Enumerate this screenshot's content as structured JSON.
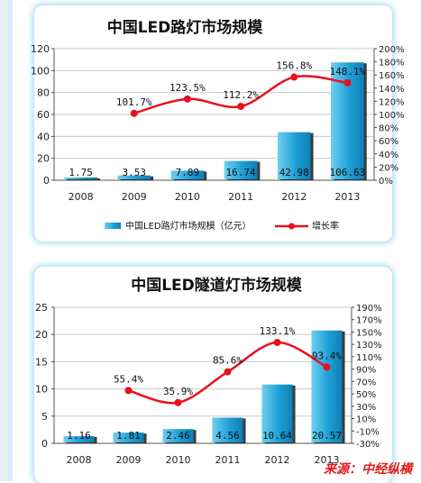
{
  "chart_data": [
    {
      "type": "bar",
      "title": "中国LED路灯市场规模",
      "categories": [
        "2008",
        "2009",
        "2010",
        "2011",
        "2012",
        "2013"
      ],
      "series": [
        {
          "name": "中国LED路灯市场规模（亿元）",
          "values": [
            1.75,
            3.53,
            7.89,
            16.74,
            42.98,
            106.63
          ],
          "labels": [
            "1.75",
            "3.53",
            "7.89",
            "16.74",
            "42.98",
            "106.63"
          ]
        },
        {
          "name": "增长率",
          "type": "line",
          "axis": "right",
          "values": [
            null,
            101.7,
            123.5,
            112.2,
            156.8,
            148.1
          ],
          "labels": [
            "",
            "101.7%",
            "123.5%",
            "112.2%",
            "156.8%",
            "148.1%"
          ]
        }
      ],
      "ylim": [
        0,
        120
      ],
      "yticks": [
        "0",
        "20",
        "40",
        "60",
        "80",
        "100",
        "120"
      ],
      "y2lim": [
        0,
        200
      ],
      "y2ticks": [
        "0%",
        "20%",
        "40%",
        "60%",
        "80%",
        "100%",
        "120%",
        "140%",
        "160%",
        "180%",
        "200%"
      ],
      "legend_placement": "bottom",
      "colors": {
        "bar": "#22a6d8",
        "line": "#e8101e"
      }
    },
    {
      "type": "bar",
      "title": "中国LED隧道灯市场规模",
      "categories": [
        "2008",
        "2009",
        "2010",
        "2011",
        "2012",
        "2013"
      ],
      "series": [
        {
          "name": "",
          "values": [
            1.16,
            1.81,
            2.46,
            4.56,
            10.64,
            20.57
          ],
          "labels": [
            "1.16",
            "1.81",
            "2.46",
            "4.56",
            "10.64",
            "20.57"
          ]
        },
        {
          "name": "",
          "type": "line",
          "axis": "right",
          "values": [
            null,
            55.4,
            35.9,
            85.6,
            133.1,
            93.4
          ],
          "labels": [
            "",
            "55.4%",
            "35.9%",
            "85.6%",
            "133.1%",
            "93.4%"
          ]
        }
      ],
      "ylim": [
        0,
        25
      ],
      "yticks": [
        "0",
        "5",
        "10",
        "15",
        "20",
        "25"
      ],
      "y2lim": [
        -30,
        190
      ],
      "y2ticks": [
        "-30%",
        "-10%",
        "10%",
        "30%",
        "50%",
        "70%",
        "90%",
        "110%",
        "130%",
        "150%",
        "170%",
        "190%"
      ],
      "legend_placement": "none",
      "colors": {
        "bar": "#22a6d8",
        "line": "#e8101e"
      }
    }
  ],
  "source": "来源：中经纵横"
}
